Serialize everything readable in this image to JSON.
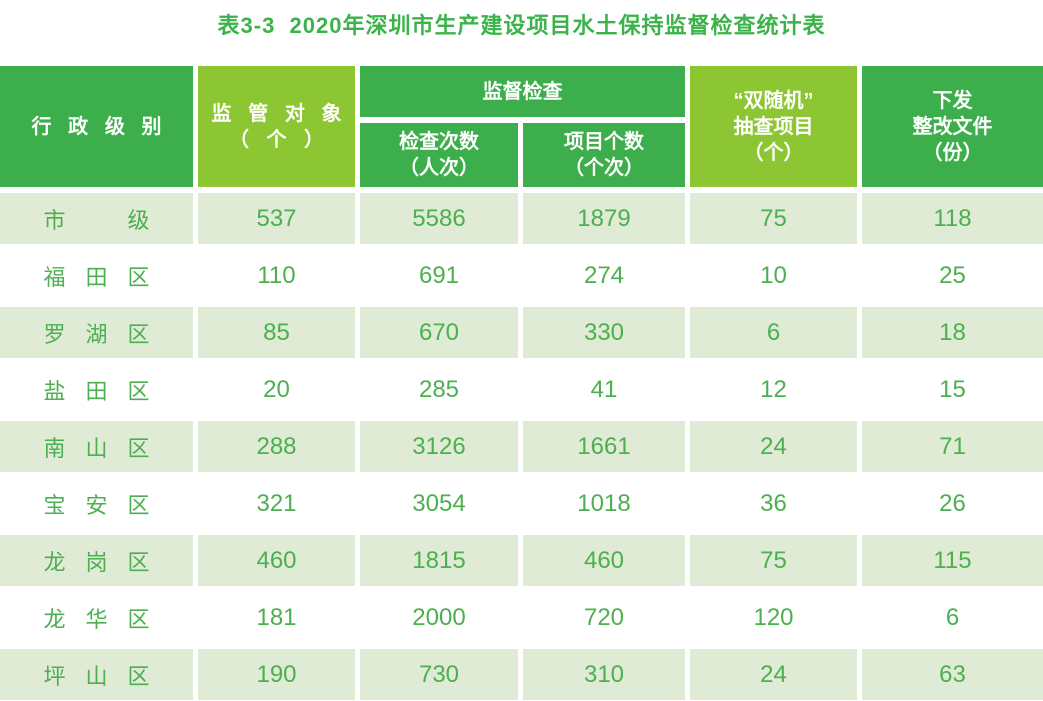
{
  "title": "表3-3  2020年深圳市生产建设项目水土保持监督检查统计表",
  "colors": {
    "header_dark_green": "#3cae4b",
    "header_light_green": "#8cc632",
    "row_stripe_green": "#dfebd4",
    "row_stripe_white": "#ffffff",
    "cell_text_green": "#4caf50",
    "title_green": "#3bb34a",
    "header_text": "#ffffff"
  },
  "table": {
    "header": {
      "admin_level": "行政级别",
      "supervision_objects_line1": "监管对象",
      "supervision_objects_line2": "（个）",
      "inspection_group": "监督检查",
      "inspection_times_line1": "检查次数",
      "inspection_times_line2": "（人次）",
      "project_count_line1": "项目个数",
      "project_count_line2": "（个次）",
      "double_random_line1": "“双随机”",
      "double_random_line2": "抽查项目",
      "double_random_line3": "（个）",
      "rectification_line1": "下发",
      "rectification_line2": "整改文件",
      "rectification_line3": "（份）"
    },
    "rows": [
      {
        "label": "市级",
        "values": [
          "537",
          "5586",
          "1879",
          "75",
          "118"
        ]
      },
      {
        "label": "福田区",
        "values": [
          "110",
          "691",
          "274",
          "10",
          "25"
        ]
      },
      {
        "label": "罗湖区",
        "values": [
          "85",
          "670",
          "330",
          "6",
          "18"
        ]
      },
      {
        "label": "盐田区",
        "values": [
          "20",
          "285",
          "41",
          "12",
          "15"
        ]
      },
      {
        "label": "南山区",
        "values": [
          "288",
          "3126",
          "1661",
          "24",
          "71"
        ]
      },
      {
        "label": "宝安区",
        "values": [
          "321",
          "3054",
          "1018",
          "36",
          "26"
        ]
      },
      {
        "label": "龙岗区",
        "values": [
          "460",
          "1815",
          "460",
          "75",
          "115"
        ]
      },
      {
        "label": "龙华区",
        "values": [
          "181",
          "2000",
          "720",
          "120",
          "6"
        ]
      },
      {
        "label": "坪山区",
        "values": [
          "190",
          "730",
          "310",
          "24",
          "63"
        ]
      }
    ]
  },
  "chart_data": {
    "type": "table",
    "title": "表3-3 2020年深圳市生产建设项目水土保持监督检查统计表",
    "columns": [
      "行政级别",
      "监管对象（个）",
      "监督检查 检查次数（人次）",
      "监督检查 项目个数（个次）",
      "“双随机”抽查项目（个）",
      "下发整改文件（份）"
    ],
    "rows": [
      [
        "市级",
        537,
        5586,
        1879,
        75,
        118
      ],
      [
        "福田区",
        110,
        691,
        274,
        10,
        25
      ],
      [
        "罗湖区",
        85,
        670,
        330,
        6,
        18
      ],
      [
        "盐田区",
        20,
        285,
        41,
        12,
        15
      ],
      [
        "南山区",
        288,
        3126,
        1661,
        24,
        71
      ],
      [
        "宝安区",
        321,
        3054,
        1018,
        36,
        26
      ],
      [
        "龙岗区",
        460,
        1815,
        460,
        75,
        115
      ],
      [
        "龙华区",
        181,
        2000,
        720,
        120,
        6
      ],
      [
        "坪山区",
        190,
        730,
        310,
        24,
        63
      ]
    ]
  }
}
